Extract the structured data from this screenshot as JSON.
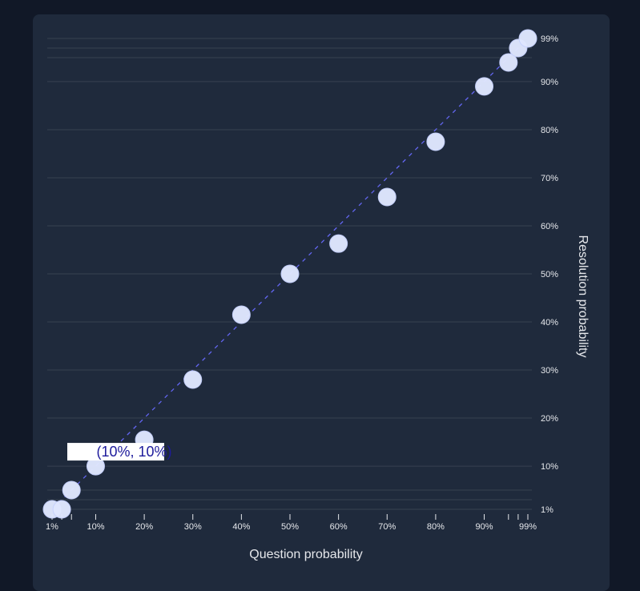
{
  "chart_data": {
    "type": "scatter",
    "xlabel": "Question probability",
    "ylabel": "Resolution probability",
    "xlim": [
      0.01,
      0.99
    ],
    "ylim": [
      0.01,
      0.99
    ],
    "scale": "logit-like (stretched near 1% and 99%)",
    "x_tick_labels": [
      "1%",
      "10%",
      "20%",
      "30%",
      "40%",
      "50%",
      "60%",
      "70%",
      "80%",
      "90%",
      "99%"
    ],
    "y_tick_labels": [
      "1%",
      "10%",
      "20%",
      "30%",
      "40%",
      "50%",
      "60%",
      "70%",
      "80%",
      "90%",
      "99%"
    ],
    "grid": "horizontal",
    "reference_line": "y = x (dashed)",
    "points": [
      {
        "x": 0.01,
        "y": 0.01
      },
      {
        "x": 0.03,
        "y": 0.01
      },
      {
        "x": 0.05,
        "y": 0.05
      },
      {
        "x": 0.1,
        "y": 0.1
      },
      {
        "x": 0.2,
        "y": 0.155
      },
      {
        "x": 0.3,
        "y": 0.28
      },
      {
        "x": 0.4,
        "y": 0.415
      },
      {
        "x": 0.5,
        "y": 0.5
      },
      {
        "x": 0.6,
        "y": 0.563
      },
      {
        "x": 0.7,
        "y": 0.66
      },
      {
        "x": 0.8,
        "y": 0.775
      },
      {
        "x": 0.9,
        "y": 0.89
      },
      {
        "x": 0.95,
        "y": 0.94
      },
      {
        "x": 0.97,
        "y": 0.97
      },
      {
        "x": 0.99,
        "y": 0.99
      }
    ],
    "tooltip": {
      "text": "(10%, 10%)",
      "x": 0.1,
      "y": 0.1
    },
    "colors": {
      "point": "#e0e7ff",
      "reference_line": "#6366f1",
      "grid": "#374151",
      "tooltip_text": "#1e1b9c"
    }
  }
}
